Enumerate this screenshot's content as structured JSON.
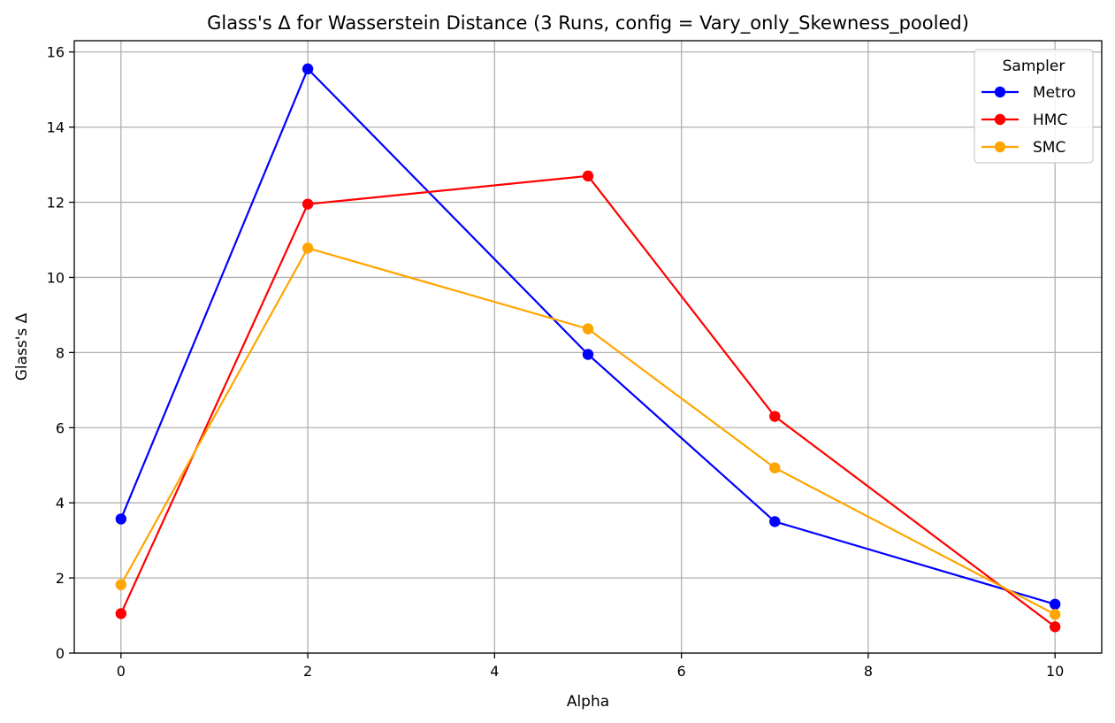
{
  "chart_data": {
    "type": "line",
    "title": "Glass's Δ for Wasserstein Distance (3 Runs, config = Vary_only_Skewness_pooled)",
    "xlabel": "Alpha",
    "ylabel": "Glass's Δ",
    "x": [
      0,
      2,
      5,
      7,
      10
    ],
    "xlim": [
      -0.5,
      10.5
    ],
    "ylim": [
      0,
      16.3
    ],
    "xticks": [
      0,
      2,
      4,
      6,
      8,
      10
    ],
    "yticks": [
      0,
      2,
      4,
      6,
      8,
      10,
      12,
      14,
      16
    ],
    "grid": true,
    "legend": {
      "title": "Sampler",
      "placement": "top-right"
    },
    "series": [
      {
        "name": "Metro",
        "color": "#0000ff",
        "values": [
          3.57,
          15.55,
          7.95,
          3.5,
          1.3
        ]
      },
      {
        "name": "HMC",
        "color": "#ff0000",
        "values": [
          1.05,
          11.95,
          12.7,
          6.3,
          0.7
        ]
      },
      {
        "name": "SMC",
        "color": "#ffa500",
        "values": [
          1.82,
          10.78,
          8.63,
          4.93,
          1.03
        ]
      }
    ]
  }
}
